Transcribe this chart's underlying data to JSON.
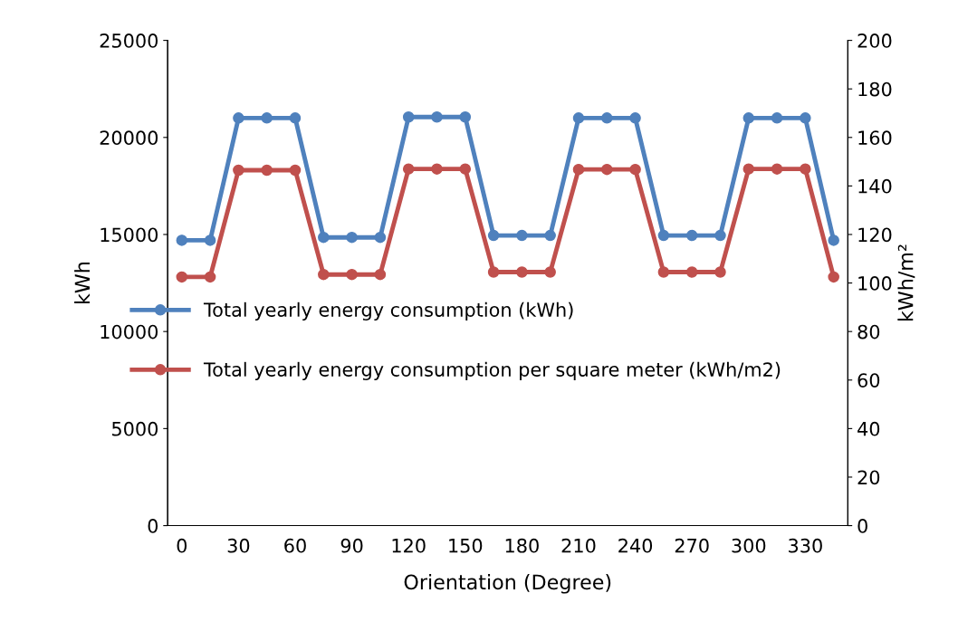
{
  "chart_data": {
    "type": "line",
    "xlabel": "Orientation (Degree)",
    "ylabel": "kWh",
    "y2label": "kWh/m²",
    "categories": [
      "0",
      null,
      "30",
      null,
      "60",
      null,
      "90",
      null,
      "120",
      null,
      "150",
      null,
      "180",
      null,
      "210",
      null,
      "240",
      null,
      "270",
      null,
      "300",
      null,
      "330",
      null
    ],
    "series": [
      {
        "name": "Total yearly energy consumption (kWh)",
        "color": "#4f81bd",
        "values": [
          14700,
          14700,
          21000,
          21000,
          21000,
          14850,
          14850,
          14850,
          21050,
          21050,
          21050,
          14950,
          14950,
          14950,
          21000,
          21000,
          21000,
          14950,
          14950,
          14950,
          21000,
          21000,
          21000,
          14700
        ]
      },
      {
        "name": "Total yearly energy consumption per square meter (kWh/m2)",
        "color": "#c0504d",
        "axis": "y2",
        "values": [
          102.5,
          102.5,
          146.5,
          146.5,
          146.5,
          103.5,
          103.5,
          103.5,
          147,
          147,
          147,
          104.5,
          104.5,
          104.5,
          146.8,
          146.8,
          146.8,
          104.5,
          104.5,
          104.5,
          147,
          147,
          147,
          102.5
        ]
      }
    ],
    "ylim": [
      0,
      25000
    ],
    "yticks": [
      0,
      5000,
      10000,
      15000,
      20000,
      25000
    ],
    "y2lim": [
      0,
      200
    ],
    "y2ticks": [
      0,
      20,
      40,
      60,
      80,
      100,
      120,
      140,
      160,
      180,
      200
    ],
    "marker": "circle",
    "line_style": "solid",
    "grid": false,
    "legend": "center"
  }
}
